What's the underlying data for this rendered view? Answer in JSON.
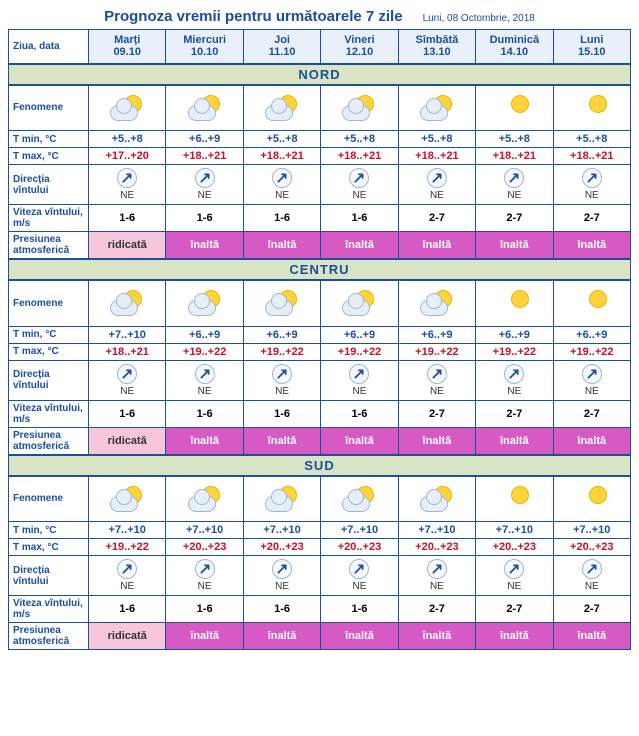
{
  "title": "Prognoza vremii pentru următoarele 7 zile",
  "issued": "Luni, 08 Octombrie, 2018",
  "header_label": "Ziua, data",
  "row_labels": {
    "phenomena": "Fenomene",
    "tmin": "T min, °C",
    "tmax": "T max, °C",
    "wind_dir": "Direcția vîntului",
    "wind_speed": "Viteza vîntului, m/s",
    "pressure": "Presiunea atmosferică"
  },
  "days": [
    {
      "name": "Marți",
      "date": "09.10"
    },
    {
      "name": "Miercuri",
      "date": "10.10"
    },
    {
      "name": "Joi",
      "date": "11.10"
    },
    {
      "name": "Vineri",
      "date": "12.10"
    },
    {
      "name": "Sîmbătă",
      "date": "13.10"
    },
    {
      "name": "Duminică",
      "date": "14.10"
    },
    {
      "name": "Luni",
      "date": "15.10"
    }
  ],
  "regions": [
    {
      "name": "NORD",
      "phen": [
        "partly",
        "partly",
        "partly",
        "partly",
        "partly",
        "sunny",
        "sunny"
      ],
      "tmin": [
        "+5..+8",
        "+6..+9",
        "+5..+8",
        "+5..+8",
        "+5..+8",
        "+5..+8",
        "+5..+8"
      ],
      "tmax": [
        "+17..+20",
        "+18..+21",
        "+18..+21",
        "+18..+21",
        "+18..+21",
        "+18..+21",
        "+18..+21"
      ],
      "wind_dir": [
        "NE",
        "NE",
        "NE",
        "NE",
        "NE",
        "NE",
        "NE"
      ],
      "wind_speed": [
        "1-6",
        "1-6",
        "1-6",
        "1-6",
        "2-7",
        "2-7",
        "2-7"
      ],
      "pressure": [
        "ridicată",
        "înaltă",
        "înaltă",
        "înaltă",
        "înaltă",
        "înaltă",
        "înaltă"
      ]
    },
    {
      "name": "CENTRU",
      "phen": [
        "partly",
        "partly",
        "partly",
        "partly",
        "partly",
        "sunny",
        "sunny"
      ],
      "tmin": [
        "+7..+10",
        "+6..+9",
        "+6..+9",
        "+6..+9",
        "+6..+9",
        "+6..+9",
        "+6..+9"
      ],
      "tmax": [
        "+18..+21",
        "+19..+22",
        "+19..+22",
        "+19..+22",
        "+19..+22",
        "+19..+22",
        "+19..+22"
      ],
      "wind_dir": [
        "NE",
        "NE",
        "NE",
        "NE",
        "NE",
        "NE",
        "NE"
      ],
      "wind_speed": [
        "1-6",
        "1-6",
        "1-6",
        "1-6",
        "2-7",
        "2-7",
        "2-7"
      ],
      "pressure": [
        "ridicată",
        "înaltă",
        "înaltă",
        "înaltă",
        "înaltă",
        "înaltă",
        "înaltă"
      ]
    },
    {
      "name": "SUD",
      "phen": [
        "partly",
        "partly",
        "partly",
        "partly",
        "partly",
        "sunny",
        "sunny"
      ],
      "tmin": [
        "+7..+10",
        "+7..+10",
        "+7..+10",
        "+7..+10",
        "+7..+10",
        "+7..+10",
        "+7..+10"
      ],
      "tmax": [
        "+19..+22",
        "+20..+23",
        "+20..+23",
        "+20..+23",
        "+20..+23",
        "+20..+23",
        "+20..+23"
      ],
      "wind_dir": [
        "NE",
        "NE",
        "NE",
        "NE",
        "NE",
        "NE",
        "NE"
      ],
      "wind_speed": [
        "1-6",
        "1-6",
        "1-6",
        "1-6",
        "2-7",
        "2-7",
        "2-7"
      ],
      "pressure": [
        "ridicată",
        "înaltă",
        "înaltă",
        "înaltă",
        "înaltă",
        "înaltă",
        "înaltă"
      ]
    }
  ],
  "colors": {
    "border": "#1a4f9c",
    "header_bg": "#eaf0fa",
    "region_bg": "#d8e4c4",
    "tmin": "#1a4f9c",
    "tmax": "#c8102e",
    "p_ridicata_bg": "#f7c6da",
    "p_inalta_bg": "#d659c4"
  }
}
